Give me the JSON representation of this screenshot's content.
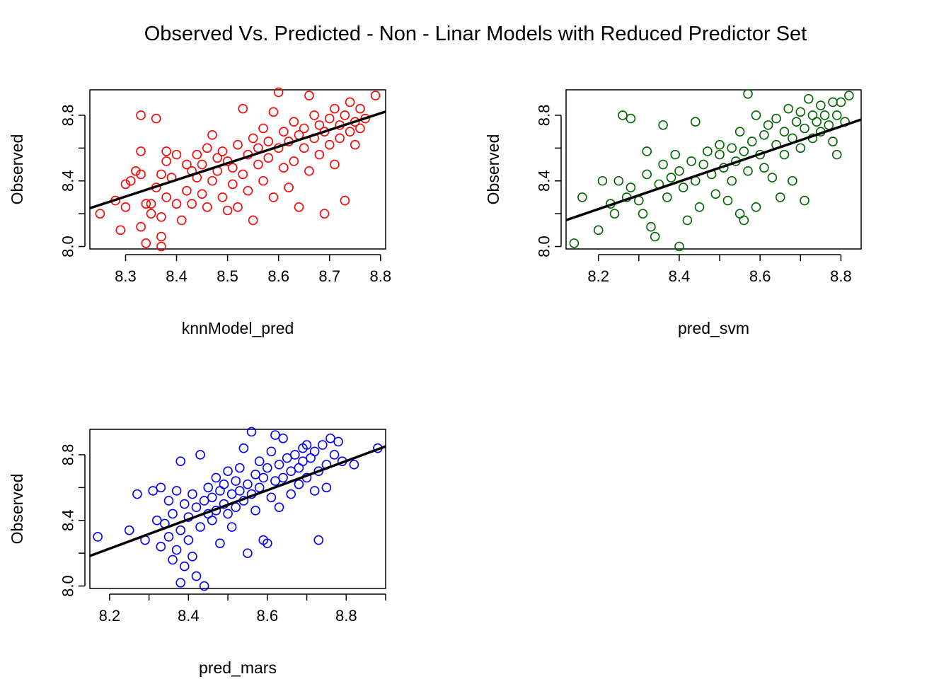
{
  "figure": {
    "title": "Observed Vs. Predicted  - Non - Linar Models with Reduced Predictor Set"
  },
  "chart_data": [
    {
      "type": "scatter",
      "id": "knn",
      "title": "",
      "xlabel": "knnModel_pred",
      "ylabel": "Observed",
      "xlim": [
        8.23,
        8.81
      ],
      "ylim": [
        7.985,
        8.955
      ],
      "x_ticks": [
        8.3,
        8.4,
        8.5,
        8.6,
        8.7,
        8.8
      ],
      "x_tick_labels": [
        "8.3",
        "8.4",
        "8.5",
        "8.6",
        "8.7",
        "8.8"
      ],
      "y_ticks": [
        8.0,
        8.2,
        8.4,
        8.6,
        8.8
      ],
      "y_tick_labels": [
        "8.0",
        "",
        "8.4",
        "",
        "8.8"
      ],
      "point_color": "#ff0000",
      "fit_line": {
        "intercept": -0.12,
        "slope": 1.015
      },
      "points": [
        [
          8.25,
          8.2
        ],
        [
          8.28,
          8.28
        ],
        [
          8.29,
          8.1
        ],
        [
          8.3,
          8.24
        ],
        [
          8.3,
          8.38
        ],
        [
          8.31,
          8.4
        ],
        [
          8.32,
          8.46
        ],
        [
          8.33,
          8.44
        ],
        [
          8.33,
          8.58
        ],
        [
          8.33,
          8.8
        ],
        [
          8.33,
          8.12
        ],
        [
          8.34,
          8.02
        ],
        [
          8.34,
          8.26
        ],
        [
          8.35,
          8.2
        ],
        [
          8.35,
          8.26
        ],
        [
          8.36,
          8.36
        ],
        [
          8.36,
          8.78
        ],
        [
          8.37,
          8.0
        ],
        [
          8.37,
          8.06
        ],
        [
          8.37,
          8.18
        ],
        [
          8.37,
          8.44
        ],
        [
          8.38,
          8.52
        ],
        [
          8.38,
          8.58
        ],
        [
          8.38,
          8.3
        ],
        [
          8.39,
          8.42
        ],
        [
          8.4,
          8.26
        ],
        [
          8.4,
          8.56
        ],
        [
          8.41,
          8.16
        ],
        [
          8.42,
          8.34
        ],
        [
          8.42,
          8.5
        ],
        [
          8.43,
          8.46
        ],
        [
          8.43,
          8.26
        ],
        [
          8.44,
          8.56
        ],
        [
          8.44,
          8.42
        ],
        [
          8.45,
          8.32
        ],
        [
          8.45,
          8.5
        ],
        [
          8.46,
          8.24
        ],
        [
          8.46,
          8.6
        ],
        [
          8.47,
          8.68
        ],
        [
          8.47,
          8.4
        ],
        [
          8.48,
          8.54
        ],
        [
          8.48,
          8.46
        ],
        [
          8.49,
          8.3
        ],
        [
          8.49,
          8.58
        ],
        [
          8.5,
          8.52
        ],
        [
          8.5,
          8.22
        ],
        [
          8.51,
          8.38
        ],
        [
          8.51,
          8.48
        ],
        [
          8.52,
          8.62
        ],
        [
          8.52,
          8.24
        ],
        [
          8.53,
          8.84
        ],
        [
          8.53,
          8.44
        ],
        [
          8.54,
          8.56
        ],
        [
          8.54,
          8.34
        ],
        [
          8.55,
          8.66
        ],
        [
          8.55,
          8.16
        ],
        [
          8.56,
          8.5
        ],
        [
          8.56,
          8.6
        ],
        [
          8.57,
          8.72
        ],
        [
          8.57,
          8.4
        ],
        [
          8.58,
          8.54
        ],
        [
          8.58,
          8.64
        ],
        [
          8.59,
          8.82
        ],
        [
          8.59,
          8.3
        ],
        [
          8.6,
          8.6
        ],
        [
          8.6,
          8.94
        ],
        [
          8.61,
          8.48
        ],
        [
          8.61,
          8.7
        ],
        [
          8.62,
          8.36
        ],
        [
          8.62,
          8.64
        ],
        [
          8.63,
          8.76
        ],
        [
          8.63,
          8.52
        ],
        [
          8.64,
          8.68
        ],
        [
          8.64,
          8.24
        ],
        [
          8.65,
          8.6
        ],
        [
          8.65,
          8.72
        ],
        [
          8.66,
          8.92
        ],
        [
          8.66,
          8.46
        ],
        [
          8.67,
          8.66
        ],
        [
          8.67,
          8.8
        ],
        [
          8.68,
          8.56
        ],
        [
          8.68,
          8.74
        ],
        [
          8.69,
          8.2
        ],
        [
          8.69,
          8.7
        ],
        [
          8.7,
          8.78
        ],
        [
          8.7,
          8.62
        ],
        [
          8.71,
          8.84
        ],
        [
          8.71,
          8.5
        ],
        [
          8.72,
          8.74
        ],
        [
          8.72,
          8.66
        ],
        [
          8.73,
          8.28
        ],
        [
          8.73,
          8.8
        ],
        [
          8.74,
          8.7
        ],
        [
          8.74,
          8.88
        ],
        [
          8.75,
          8.76
        ],
        [
          8.75,
          8.62
        ],
        [
          8.76,
          8.84
        ],
        [
          8.76,
          8.72
        ],
        [
          8.77,
          8.78
        ],
        [
          8.79,
          8.92
        ]
      ]
    },
    {
      "type": "scatter",
      "id": "svm",
      "title": "",
      "xlabel": "pred_svm",
      "ylabel": "Observed",
      "xlim": [
        8.12,
        8.85
      ],
      "ylim": [
        7.985,
        8.955
      ],
      "x_ticks": [
        8.2,
        8.3,
        8.4,
        8.5,
        8.6,
        8.7,
        8.8
      ],
      "x_tick_labels": [
        "8.2",
        "",
        "8.4",
        "",
        "8.6",
        "",
        "8.8"
      ],
      "y_ticks": [
        8.0,
        8.2,
        8.4,
        8.6,
        8.8
      ],
      "y_tick_labels": [
        "8.0",
        "",
        "8.4",
        "",
        "8.8"
      ],
      "point_color": "#006400",
      "fit_line": {
        "intercept": 1.34,
        "slope": 0.84
      },
      "points": [
        [
          8.14,
          8.02
        ],
        [
          8.16,
          8.3
        ],
        [
          8.2,
          8.1
        ],
        [
          8.21,
          8.4
        ],
        [
          8.23,
          8.26
        ],
        [
          8.24,
          8.2
        ],
        [
          8.25,
          8.4
        ],
        [
          8.26,
          8.8
        ],
        [
          8.27,
          8.3
        ],
        [
          8.28,
          8.78
        ],
        [
          8.28,
          8.36
        ],
        [
          8.3,
          8.28
        ],
        [
          8.31,
          8.2
        ],
        [
          8.32,
          8.58
        ],
        [
          8.32,
          8.44
        ],
        [
          8.33,
          8.12
        ],
        [
          8.34,
          8.06
        ],
        [
          8.35,
          8.38
        ],
        [
          8.36,
          8.74
        ],
        [
          8.36,
          8.5
        ],
        [
          8.37,
          8.3
        ],
        [
          8.38,
          8.42
        ],
        [
          8.39,
          8.56
        ],
        [
          8.4,
          8.0
        ],
        [
          8.4,
          8.46
        ],
        [
          8.41,
          8.36
        ],
        [
          8.42,
          8.16
        ],
        [
          8.43,
          8.52
        ],
        [
          8.44,
          8.76
        ],
        [
          8.44,
          8.4
        ],
        [
          8.45,
          8.24
        ],
        [
          8.46,
          8.5
        ],
        [
          8.47,
          8.58
        ],
        [
          8.48,
          8.44
        ],
        [
          8.49,
          8.32
        ],
        [
          8.5,
          8.56
        ],
        [
          8.5,
          8.62
        ],
        [
          8.51,
          8.48
        ],
        [
          8.52,
          8.28
        ],
        [
          8.53,
          8.6
        ],
        [
          8.53,
          8.4
        ],
        [
          8.54,
          8.52
        ],
        [
          8.55,
          8.7
        ],
        [
          8.55,
          8.2
        ],
        [
          8.56,
          8.16
        ],
        [
          8.56,
          8.58
        ],
        [
          8.57,
          8.93
        ],
        [
          8.57,
          8.46
        ],
        [
          8.58,
          8.64
        ],
        [
          8.59,
          8.24
        ],
        [
          8.59,
          8.8
        ],
        [
          8.6,
          8.56
        ],
        [
          8.61,
          8.68
        ],
        [
          8.61,
          8.48
        ],
        [
          8.62,
          8.74
        ],
        [
          8.63,
          8.42
        ],
        [
          8.64,
          8.62
        ],
        [
          8.64,
          8.78
        ],
        [
          8.65,
          8.3
        ],
        [
          8.66,
          8.7
        ],
        [
          8.66,
          8.56
        ],
        [
          8.67,
          8.84
        ],
        [
          8.68,
          8.66
        ],
        [
          8.68,
          8.4
        ],
        [
          8.69,
          8.76
        ],
        [
          8.7,
          8.6
        ],
        [
          8.7,
          8.82
        ],
        [
          8.71,
          8.28
        ],
        [
          8.71,
          8.72
        ],
        [
          8.72,
          8.9
        ],
        [
          8.73,
          8.8
        ],
        [
          8.73,
          8.66
        ],
        [
          8.74,
          8.76
        ],
        [
          8.75,
          8.86
        ],
        [
          8.75,
          8.7
        ],
        [
          8.76,
          8.8
        ],
        [
          8.77,
          8.74
        ],
        [
          8.78,
          8.88
        ],
        [
          8.78,
          8.64
        ],
        [
          8.79,
          8.56
        ],
        [
          8.79,
          8.8
        ],
        [
          8.8,
          8.88
        ],
        [
          8.81,
          8.76
        ],
        [
          8.82,
          8.92
        ]
      ]
    },
    {
      "type": "scatter",
      "id": "mars",
      "title": "",
      "xlabel": "pred_mars",
      "ylabel": "Observed",
      "xlim": [
        8.15,
        8.9
      ],
      "ylim": [
        7.985,
        8.955
      ],
      "x_ticks": [
        8.2,
        8.3,
        8.4,
        8.5,
        8.6,
        8.7,
        8.8,
        8.9
      ],
      "x_tick_labels": [
        "8.2",
        "",
        "8.4",
        "",
        "8.6",
        "",
        "8.8",
        ""
      ],
      "y_ticks": [
        8.0,
        8.2,
        8.4,
        8.6,
        8.8
      ],
      "y_tick_labels": [
        "8.0",
        "",
        "8.4",
        "",
        "8.8"
      ],
      "point_color": "#0000ff",
      "fit_line": {
        "intercept": 0.93,
        "slope": 0.89
      },
      "points": [
        [
          8.17,
          8.3
        ],
        [
          8.25,
          8.34
        ],
        [
          8.27,
          8.56
        ],
        [
          8.29,
          8.28
        ],
        [
          8.31,
          8.58
        ],
        [
          8.32,
          8.4
        ],
        [
          8.33,
          8.24
        ],
        [
          8.33,
          8.6
        ],
        [
          8.34,
          8.38
        ],
        [
          8.35,
          8.52
        ],
        [
          8.35,
          8.3
        ],
        [
          8.36,
          8.16
        ],
        [
          8.36,
          8.44
        ],
        [
          8.37,
          8.58
        ],
        [
          8.37,
          8.22
        ],
        [
          8.38,
          8.02
        ],
        [
          8.38,
          8.76
        ],
        [
          8.38,
          8.34
        ],
        [
          8.39,
          8.12
        ],
        [
          8.39,
          8.5
        ],
        [
          8.4,
          8.28
        ],
        [
          8.4,
          8.42
        ],
        [
          8.41,
          8.56
        ],
        [
          8.41,
          8.18
        ],
        [
          8.42,
          8.06
        ],
        [
          8.42,
          8.48
        ],
        [
          8.43,
          8.8
        ],
        [
          8.43,
          8.36
        ],
        [
          8.44,
          8.0
        ],
        [
          8.44,
          8.52
        ],
        [
          8.45,
          8.44
        ],
        [
          8.45,
          8.6
        ],
        [
          8.46,
          8.4
        ],
        [
          8.46,
          8.54
        ],
        [
          8.47,
          8.66
        ],
        [
          8.47,
          8.46
        ],
        [
          8.48,
          8.26
        ],
        [
          8.48,
          8.58
        ],
        [
          8.49,
          8.5
        ],
        [
          8.49,
          8.62
        ],
        [
          8.5,
          8.44
        ],
        [
          8.5,
          8.7
        ],
        [
          8.51,
          8.56
        ],
        [
          8.51,
          8.36
        ],
        [
          8.52,
          8.64
        ],
        [
          8.52,
          8.48
        ],
        [
          8.53,
          8.58
        ],
        [
          8.53,
          8.72
        ],
        [
          8.54,
          8.84
        ],
        [
          8.54,
          8.52
        ],
        [
          8.55,
          8.2
        ],
        [
          8.55,
          8.62
        ],
        [
          8.56,
          8.94
        ],
        [
          8.56,
          8.56
        ],
        [
          8.57,
          8.68
        ],
        [
          8.57,
          8.46
        ],
        [
          8.58,
          8.6
        ],
        [
          8.58,
          8.76
        ],
        [
          8.59,
          8.28
        ],
        [
          8.59,
          8.66
        ],
        [
          8.6,
          8.26
        ],
        [
          8.6,
          8.72
        ],
        [
          8.61,
          8.54
        ],
        [
          8.61,
          8.82
        ],
        [
          8.62,
          8.92
        ],
        [
          8.62,
          8.64
        ],
        [
          8.63,
          8.74
        ],
        [
          8.63,
          8.48
        ],
        [
          8.64,
          8.9
        ],
        [
          8.64,
          8.66
        ],
        [
          8.65,
          8.78
        ],
        [
          8.66,
          8.7
        ],
        [
          8.66,
          8.56
        ],
        [
          8.67,
          8.8
        ],
        [
          8.68,
          8.72
        ],
        [
          8.68,
          8.62
        ],
        [
          8.69,
          8.84
        ],
        [
          8.69,
          8.76
        ],
        [
          8.7,
          8.66
        ],
        [
          8.7,
          8.86
        ],
        [
          8.71,
          8.78
        ],
        [
          8.72,
          8.58
        ],
        [
          8.72,
          8.82
        ],
        [
          8.73,
          8.7
        ],
        [
          8.73,
          8.28
        ],
        [
          8.74,
          8.86
        ],
        [
          8.75,
          8.74
        ],
        [
          8.75,
          8.6
        ],
        [
          8.76,
          8.9
        ],
        [
          8.77,
          8.8
        ],
        [
          8.78,
          8.88
        ],
        [
          8.79,
          8.76
        ],
        [
          8.82,
          8.74
        ],
        [
          8.88,
          8.84
        ]
      ]
    }
  ]
}
